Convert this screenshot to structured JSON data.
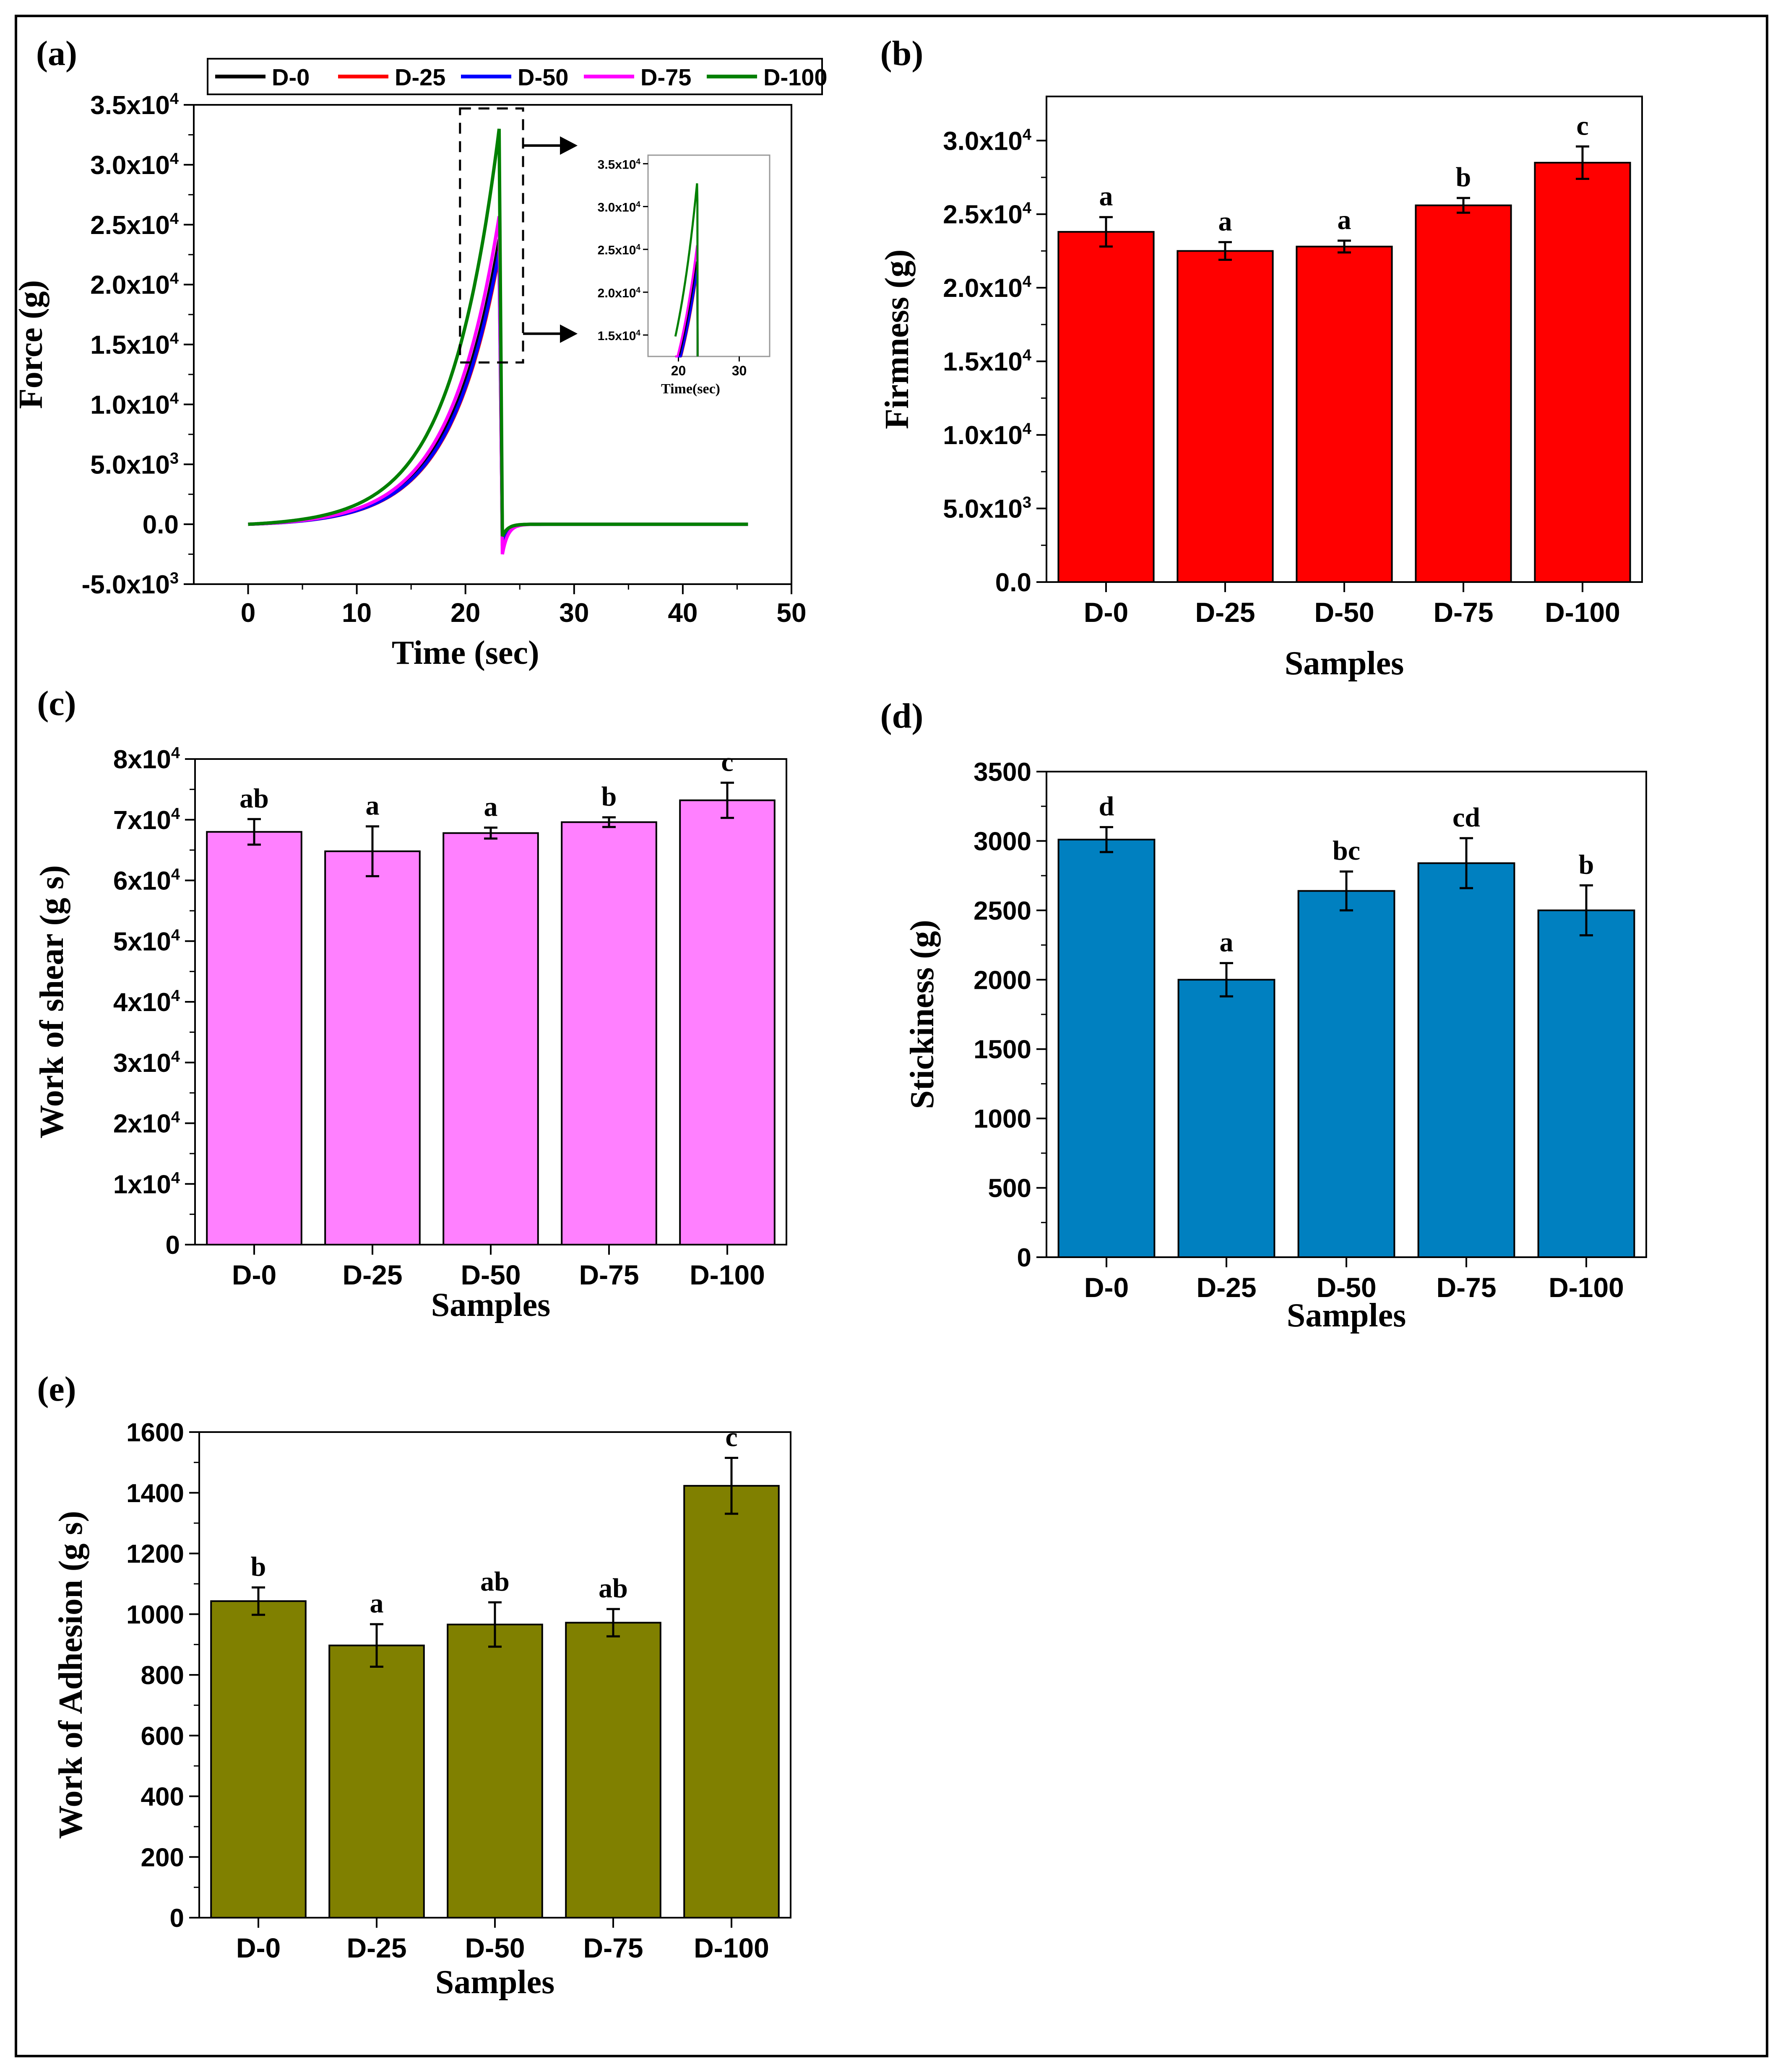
{
  "chart_data": [
    {
      "panel": "(a)",
      "type": "line",
      "xlabel": "Time (sec)",
      "ylabel": "Force (g)",
      "xlim": [
        -5,
        50
      ],
      "ylim": [
        -5000,
        35000
      ],
      "xticks": [
        "0",
        "10",
        "20",
        "30",
        "40",
        "50"
      ],
      "yticks": [
        {
          "m": "-5.0x10",
          "e": "3",
          "v": -5000
        },
        {
          "m": "0.0",
          "e": "",
          "v": 0
        },
        {
          "m": "5.0x10",
          "e": "3",
          "v": 5000
        },
        {
          "m": "1.0x10",
          "e": "4",
          "v": 10000
        },
        {
          "m": "1.5x10",
          "e": "4",
          "v": 15000
        },
        {
          "m": "2.0x10",
          "e": "4",
          "v": 20000
        },
        {
          "m": "2.5x10",
          "e": "4",
          "v": 25000
        },
        {
          "m": "3.0x10",
          "e": "4",
          "v": 30000
        },
        {
          "m": "3.5x10",
          "e": "4",
          "v": 35000
        }
      ],
      "series": [
        {
          "name": "D-0",
          "color": "#000000",
          "peak": 23800,
          "trough": -1200
        },
        {
          "name": "D-25",
          "color": "#ff0000",
          "peak": 22500,
          "trough": -1500
        },
        {
          "name": "D-50",
          "color": "#0000ff",
          "peak": 22800,
          "trough": -1800
        },
        {
          "name": "D-75",
          "color": "#ff00ff",
          "peak": 25700,
          "trough": -2500
        },
        {
          "name": "D-100",
          "color": "#008000",
          "peak": 33000,
          "trough": -1000
        }
      ],
      "peak_time": 23.1,
      "end_time": 46,
      "inset": {
        "xlabel": "Time(sec)",
        "xticks": [
          "20",
          "30"
        ],
        "yticks": [
          {
            "m": "1.5x10",
            "e": "4"
          },
          {
            "m": "2.0x10",
            "e": "4"
          },
          {
            "m": "2.5x10",
            "e": "4"
          },
          {
            "m": "3.0x10",
            "e": "4"
          },
          {
            "m": "3.5x10",
            "e": "4"
          }
        ]
      }
    },
    {
      "panel": "(b)",
      "type": "bar",
      "color": "#ff0000",
      "xlabel": "Samples",
      "ylabel": "Firmness (g)",
      "ylim": [
        0,
        33000
      ],
      "categories": [
        "D-0",
        "D-25",
        "D-50",
        "D-75",
        "D-100"
      ],
      "values": [
        23800,
        22500,
        22800,
        25600,
        28500
      ],
      "errors": [
        1000,
        600,
        400,
        500,
        1100
      ],
      "letters": [
        "a",
        "a",
        "a",
        "b",
        "c"
      ],
      "yticks": [
        {
          "m": "0.0",
          "e": "",
          "v": 0
        },
        {
          "m": "5.0x10",
          "e": "3",
          "v": 5000
        },
        {
          "m": "1.0x10",
          "e": "4",
          "v": 10000
        },
        {
          "m": "1.5x10",
          "e": "4",
          "v": 15000
        },
        {
          "m": "2.0x10",
          "e": "4",
          "v": 20000
        },
        {
          "m": "2.5x10",
          "e": "4",
          "v": 25000
        },
        {
          "m": "3.0x10",
          "e": "4",
          "v": 30000
        }
      ]
    },
    {
      "panel": "(c)",
      "type": "bar",
      "color": "#ff80ff",
      "xlabel": "Samples",
      "ylabel": "Work of shear (g s)",
      "ylim": [
        0,
        80000
      ],
      "categories": [
        "D-0",
        "D-25",
        "D-50",
        "D-75",
        "D-100"
      ],
      "values": [
        68000,
        64800,
        67800,
        69600,
        73200
      ],
      "errors": [
        2100,
        4100,
        900,
        800,
        2900
      ],
      "letters": [
        "ab",
        "a",
        "a",
        "b",
        "c"
      ],
      "yticks": [
        {
          "m": "0",
          "e": "",
          "v": 0
        },
        {
          "m": "1x10",
          "e": "4",
          "v": 10000
        },
        {
          "m": "2x10",
          "e": "4",
          "v": 20000
        },
        {
          "m": "3x10",
          "e": "4",
          "v": 30000
        },
        {
          "m": "4x10",
          "e": "4",
          "v": 40000
        },
        {
          "m": "5x10",
          "e": "4",
          "v": 50000
        },
        {
          "m": "6x10",
          "e": "4",
          "v": 60000
        },
        {
          "m": "7x10",
          "e": "4",
          "v": 70000
        },
        {
          "m": "8x10",
          "e": "4",
          "v": 80000
        }
      ]
    },
    {
      "panel": "(d)",
      "type": "bar",
      "color": "#0080c0",
      "xlabel": "Samples",
      "ylabel": "Stickiness (g)",
      "ylim": [
        0,
        3500
      ],
      "categories": [
        "D-0",
        "D-25",
        "D-50",
        "D-75",
        "D-100"
      ],
      "values": [
        3010,
        2000,
        2640,
        2840,
        2500
      ],
      "errors": [
        90,
        120,
        140,
        180,
        180
      ],
      "letters": [
        "d",
        "a",
        "bc",
        "cd",
        "b"
      ],
      "yticks": [
        {
          "m": "0",
          "e": "",
          "v": 0
        },
        {
          "m": "500",
          "e": "",
          "v": 500
        },
        {
          "m": "1000",
          "e": "",
          "v": 1000
        },
        {
          "m": "1500",
          "e": "",
          "v": 1500
        },
        {
          "m": "2000",
          "e": "",
          "v": 2000
        },
        {
          "m": "2500",
          "e": "",
          "v": 2500
        },
        {
          "m": "3000",
          "e": "",
          "v": 3000
        },
        {
          "m": "3500",
          "e": "",
          "v": 3500
        }
      ]
    },
    {
      "panel": "(e)",
      "type": "bar",
      "color": "#808000",
      "xlabel": "Samples",
      "ylabel": "Work of Adhesion (g s)",
      "ylim": [
        0,
        1600
      ],
      "categories": [
        "D-0",
        "D-25",
        "D-50",
        "D-75",
        "D-100"
      ],
      "values": [
        1043,
        897,
        966,
        972,
        1423
      ],
      "errors": [
        45,
        70,
        73,
        45,
        92
      ],
      "letters": [
        "b",
        "a",
        "ab",
        "ab",
        "c"
      ],
      "yticks": [
        {
          "m": "0",
          "e": "",
          "v": 0
        },
        {
          "m": "200",
          "e": "",
          "v": 200
        },
        {
          "m": "400",
          "e": "",
          "v": 400
        },
        {
          "m": "600",
          "e": "",
          "v": 600
        },
        {
          "m": "800",
          "e": "",
          "v": 800
        },
        {
          "m": "1000",
          "e": "",
          "v": 1000
        },
        {
          "m": "1200",
          "e": "",
          "v": 1200
        },
        {
          "m": "1400",
          "e": "",
          "v": 1400
        },
        {
          "m": "1600",
          "e": "",
          "v": 1600
        }
      ]
    }
  ]
}
